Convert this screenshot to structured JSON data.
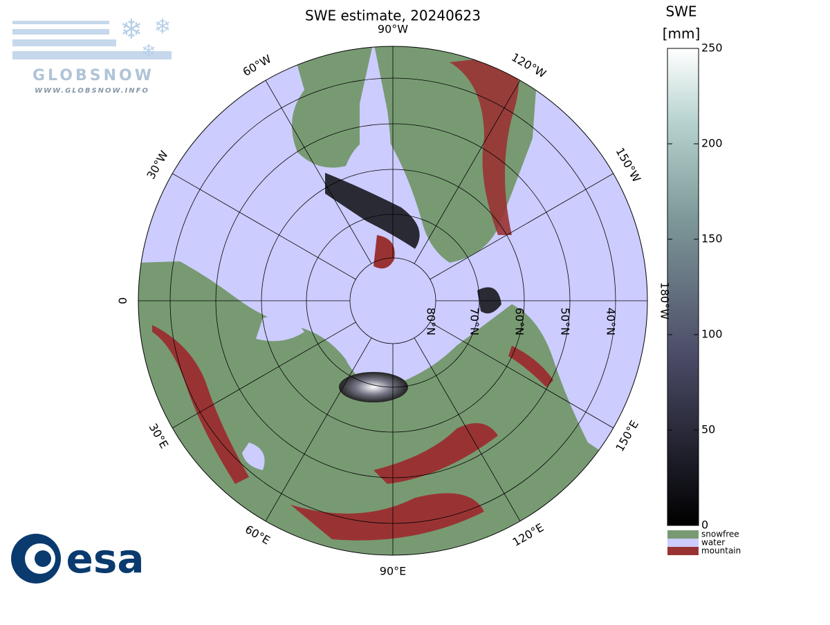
{
  "title": "SWE estimate, 20240623",
  "meridian_labels": [
    "90°W",
    "120°W",
    "150°W",
    "180°W",
    "150°E",
    "120°E",
    "90°E",
    "60°E",
    "30°E",
    "0",
    "30°W",
    "60°W"
  ],
  "latitude_labels": [
    "80°N",
    "70°N",
    "60°N",
    "50°N",
    "40°N"
  ],
  "colorbar": {
    "title": "SWE",
    "unit": "[mm]",
    "lim": [
      0,
      250
    ],
    "ticks": [
      0,
      50,
      100,
      150,
      200,
      250
    ]
  },
  "legend": [
    {
      "label": "snowfree",
      "color": "#789a73"
    },
    {
      "label": "water",
      "color": "#ccccff"
    },
    {
      "label": "mountain",
      "color": "#993333"
    }
  ],
  "logos": {
    "globsnow": "GLOBSNOW",
    "url": "WWW.GLOBSNOW.INFO",
    "esa": "esa"
  }
}
